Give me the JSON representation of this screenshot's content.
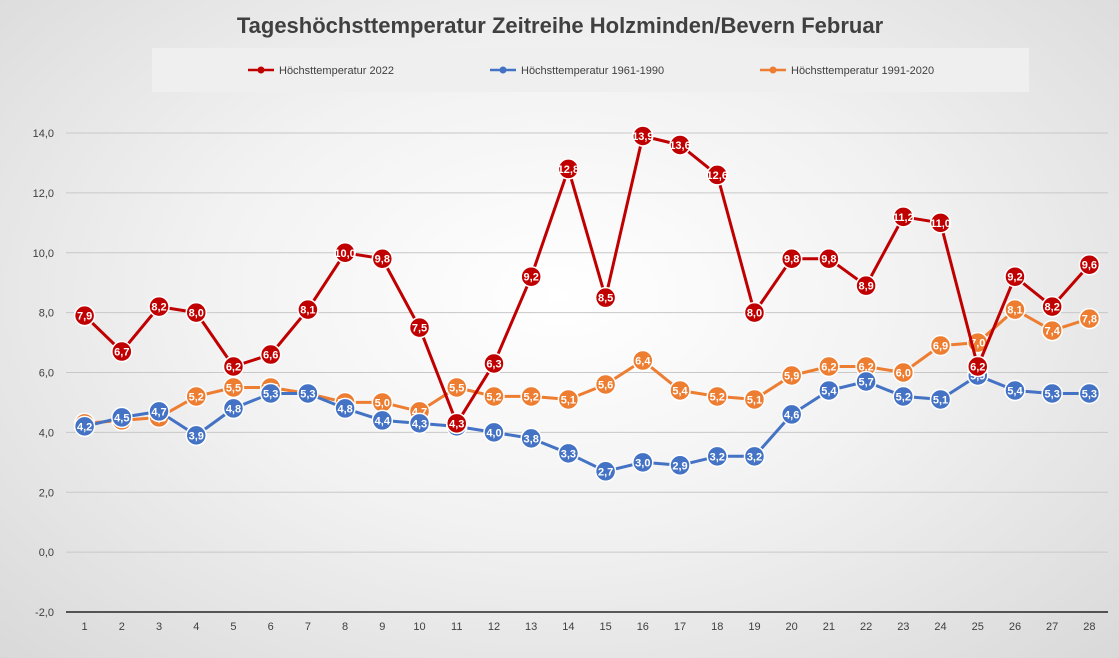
{
  "chart_data": {
    "type": "line",
    "title": "Tageshöchsttemperatur Zeitreihe Holzminden/Bevern Februar",
    "xlabel": "",
    "ylabel": "",
    "ylim": [
      -2,
      14
    ],
    "ytick_step": 2,
    "ytick_labels": [
      "-2,0",
      "0,0",
      "2,0",
      "4,0",
      "6,0",
      "8,0",
      "10,0",
      "12,0",
      "14,0"
    ],
    "grid": true,
    "legend_position": "top",
    "categories": [
      "1",
      "2",
      "3",
      "4",
      "5",
      "6",
      "7",
      "8",
      "9",
      "10",
      "11",
      "12",
      "13",
      "14",
      "15",
      "16",
      "17",
      "18",
      "19",
      "20",
      "21",
      "22",
      "23",
      "24",
      "25",
      "26",
      "27",
      "28"
    ],
    "series": [
      {
        "name": "Höchsttemperatur 2022",
        "color": "#c00000",
        "values": [
          7.9,
          6.7,
          8.2,
          8.0,
          6.2,
          6.6,
          8.1,
          10.0,
          9.8,
          7.5,
          4.3,
          6.3,
          9.2,
          12.8,
          8.5,
          13.9,
          13.6,
          12.6,
          8.0,
          9.8,
          9.8,
          8.9,
          11.2,
          11.0,
          6.2,
          9.2,
          8.2,
          9.6
        ],
        "labels": [
          "7,9",
          "6,7",
          "8,2",
          "8,0",
          "6,2",
          "6,6",
          "8,1",
          "10,0",
          "9,8",
          "7,5",
          "4,3",
          "6,3",
          "9,2",
          "12,8",
          "8,5",
          "13,9",
          "13,6",
          "12,6",
          "8,0",
          "9,8",
          "9,8",
          "8,9",
          "11,2",
          "11,0",
          "6,2",
          "9,2",
          "8,2",
          "9,6"
        ]
      },
      {
        "name": "Höchsttemperatur 1961-1990",
        "color": "#4472c4",
        "values": [
          4.2,
          4.5,
          4.7,
          3.9,
          4.8,
          5.3,
          5.3,
          4.8,
          4.4,
          4.3,
          4.2,
          4.0,
          3.8,
          3.3,
          2.7,
          3.0,
          2.9,
          3.2,
          3.2,
          4.6,
          5.4,
          5.7,
          5.2,
          5.1,
          5.9,
          5.4,
          5.3,
          5.3
        ],
        "labels": [
          "4,2",
          "4,5",
          "4,7",
          "3,9",
          "4,8",
          "5,3",
          "5,3",
          "4,8",
          "4,4",
          "4,3",
          "4,2",
          "4,0",
          "3,8",
          "3,3",
          "2,7",
          "3,0",
          "2,9",
          "3,2",
          "3,2",
          "4,6",
          "5,4",
          "5,7",
          "5,2",
          "5,1",
          "5,9",
          "5,4",
          "5,3",
          "5,3"
        ]
      },
      {
        "name": "Höchsttemperatur 1991-2020",
        "color": "#ed7d31",
        "values": [
          4.3,
          4.4,
          4.5,
          5.2,
          5.5,
          5.5,
          5.3,
          5.0,
          5.0,
          4.7,
          5.5,
          5.2,
          5.2,
          5.1,
          5.6,
          6.4,
          5.4,
          5.2,
          5.1,
          5.9,
          6.2,
          6.2,
          6.0,
          6.9,
          7.0,
          8.1,
          7.4,
          7.8
        ],
        "labels": [
          "4,3",
          "4,4",
          "4,5",
          "5,2",
          "5,5",
          "5,5",
          "5,3",
          "5,0",
          "5,0",
          "4,7",
          "5,5",
          "5,2",
          "5,2",
          "5,1",
          "5,6",
          "6,4",
          "5,4",
          "5,2",
          "5,1",
          "5,9",
          "6,2",
          "6,2",
          "6,0",
          "6,9",
          "7,0",
          "8,1",
          "7,4",
          "7,8"
        ]
      }
    ]
  }
}
